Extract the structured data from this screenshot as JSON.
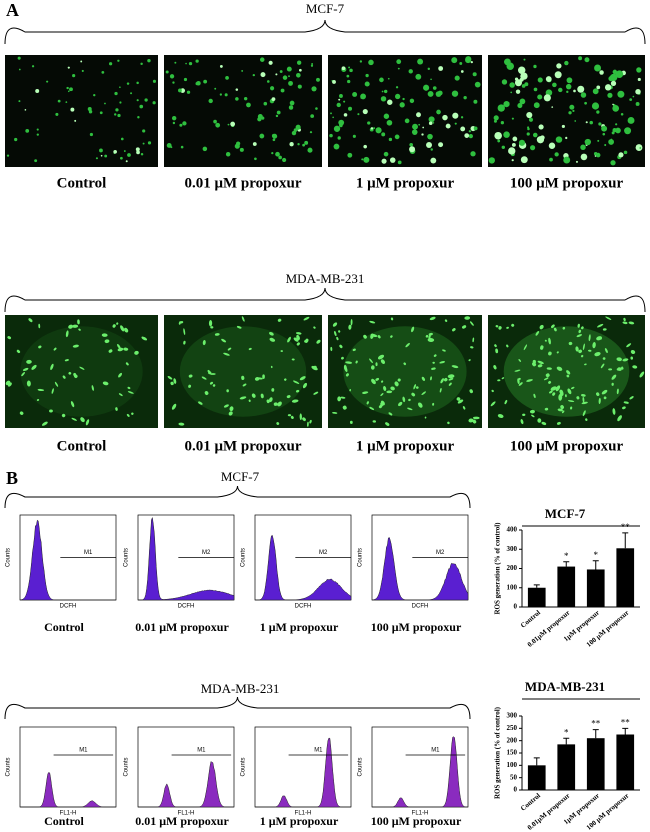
{
  "panel_a": {
    "label": "A",
    "groups": [
      {
        "title": "MCF-7",
        "captions": [
          "Control",
          "0.01 μM propoxur",
          "1 μM propoxur",
          "100 μM propoxur"
        ]
      },
      {
        "title": "MDA-MB-231",
        "captions": [
          "Control",
          "0.01 μM propoxur",
          "1 μM propoxur",
          "100 μM propoxur"
        ]
      }
    ]
  },
  "panel_b": {
    "label": "B",
    "groups": [
      {
        "title": "MCF-7",
        "captions": [
          "Control",
          "0.01 μM propoxur",
          "1 μM propoxur",
          "100 μM propoxur"
        ],
        "histogram_y_label": "Counts",
        "histogram_x_label": "DCFH",
        "gate_labels": [
          "M1",
          "M2",
          "M2",
          "M2"
        ],
        "chart": {
          "type": "bar",
          "title": "MCF-7",
          "y_label": "ROS generation (% of control)",
          "categories": [
            "Control",
            "0.01μM propoxur",
            "1μM propoxur",
            "100 μM propoxur"
          ],
          "values": [
            100,
            210,
            195,
            305
          ],
          "errors": [
            15,
            25,
            45,
            80
          ],
          "annotations": [
            null,
            "*",
            "*",
            "**"
          ],
          "color": "#000000",
          "ylim": [
            0,
            400
          ],
          "yticks": [
            0,
            100,
            200,
            300,
            400
          ]
        }
      },
      {
        "title": "MDA-MB-231",
        "captions": [
          "Control",
          "0.01 μM propoxur",
          "1 μM propoxur",
          "100 μM propoxur"
        ],
        "histogram_y_label": "Counts",
        "histogram_x_label": "FL1-H",
        "gate_labels": [
          "M1",
          "M1",
          "M1",
          "M1"
        ],
        "chart": {
          "type": "bar",
          "title": "MDA-MB-231",
          "y_label": "ROS generation (% of control)",
          "categories": [
            "Control",
            "0.01μM propoxur",
            "1μM propoxur",
            "100 μM propoxur"
          ],
          "values": [
            100,
            185,
            210,
            225
          ],
          "errors": [
            30,
            25,
            35,
            25
          ],
          "annotations": [
            null,
            "*",
            "**",
            "**"
          ],
          "color": "#000000",
          "ylim": [
            0,
            300
          ],
          "yticks": [
            0,
            50,
            100,
            150,
            200,
            250,
            300
          ]
        }
      }
    ]
  }
}
